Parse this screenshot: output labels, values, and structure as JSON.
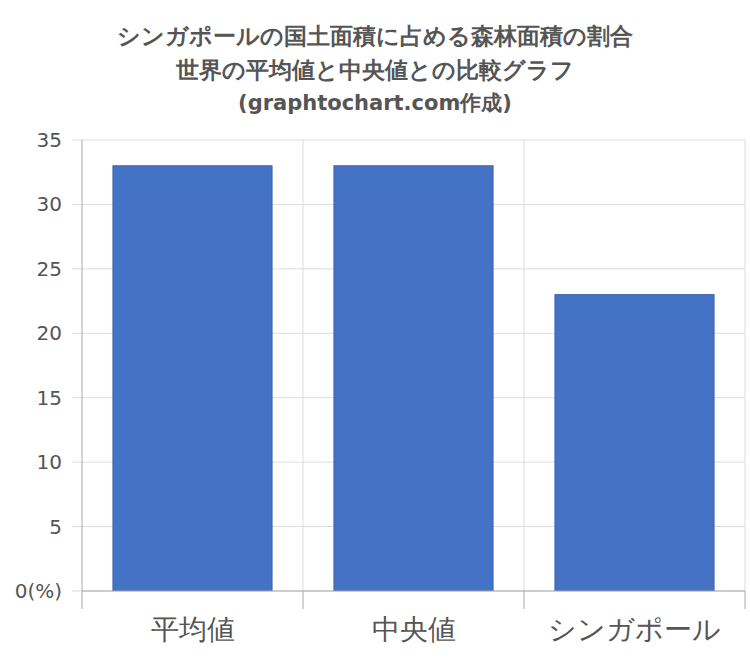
{
  "chart_data": {
    "type": "bar",
    "title": "シンガポールの国土面積に占める森林面積の割合",
    "subtitle": "世界の平均値と中央値との比較グラフ",
    "annotations": [
      "(graphtochart.com作成)"
    ],
    "categories": [
      "平均値",
      "中央値",
      "シンガポール"
    ],
    "values": [
      33,
      33,
      23
    ],
    "color": "#4472c4",
    "ylim": [
      0,
      35
    ],
    "yticks": [
      {
        "value": 0,
        "label": "0(%)"
      },
      5,
      10,
      15,
      20,
      25,
      30,
      35
    ],
    "grid": true
  }
}
